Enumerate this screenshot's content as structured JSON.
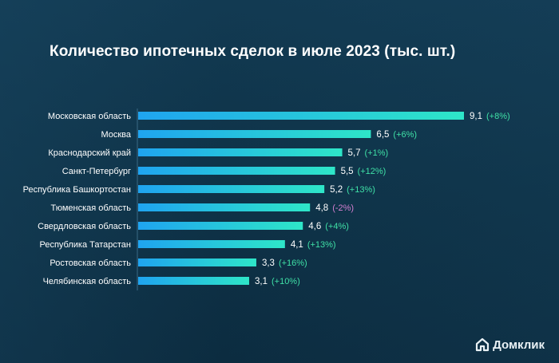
{
  "title": "Количество ипотечных сделок в июле 2023 (тыс. шт.)",
  "brand": {
    "name": "Домклик",
    "icon": "house-logo-icon"
  },
  "colors": {
    "bar_start": "#1fa4f0",
    "bar_end": "#2ee6c8",
    "label_text": "#ffffff",
    "value_text": "#ffffff",
    "change_positive": "#3fe0a6",
    "change_negative": "#d47fd0",
    "axis_line": "#3a6a85"
  },
  "chart_data": {
    "type": "bar",
    "orientation": "horizontal",
    "title": "Количество ипотечных сделок в июле 2023 (тыс. шт.)",
    "categories": [
      "Московская область",
      "Москва",
      "Краснодарский край",
      "Санкт-Петербург",
      "Республика Башкортостан",
      "Тюменская область",
      "Свердловская область",
      "Республика Татарстан",
      "Ростовская область",
      "Челябинская область"
    ],
    "values": [
      9.1,
      6.5,
      5.7,
      5.5,
      5.2,
      4.8,
      4.6,
      4.1,
      3.3,
      3.1
    ],
    "value_labels": [
      "9,1",
      "6,5",
      "5,7",
      "5,5",
      "5,2",
      "4,8",
      "4,6",
      "4,1",
      "3,3",
      "3,1"
    ],
    "change_labels": [
      "(+8%)",
      "(+6%)",
      "(+1%)",
      "(+12%)",
      "(+13%)",
      "(-2%)",
      "(+4%)",
      "(+13%)",
      "(+16%)",
      "(+10%)"
    ],
    "changes": [
      8,
      6,
      1,
      12,
      13,
      -2,
      4,
      13,
      16,
      10
    ],
    "xlim": [
      0,
      9.1
    ],
    "grid": false,
    "legend": "none"
  }
}
